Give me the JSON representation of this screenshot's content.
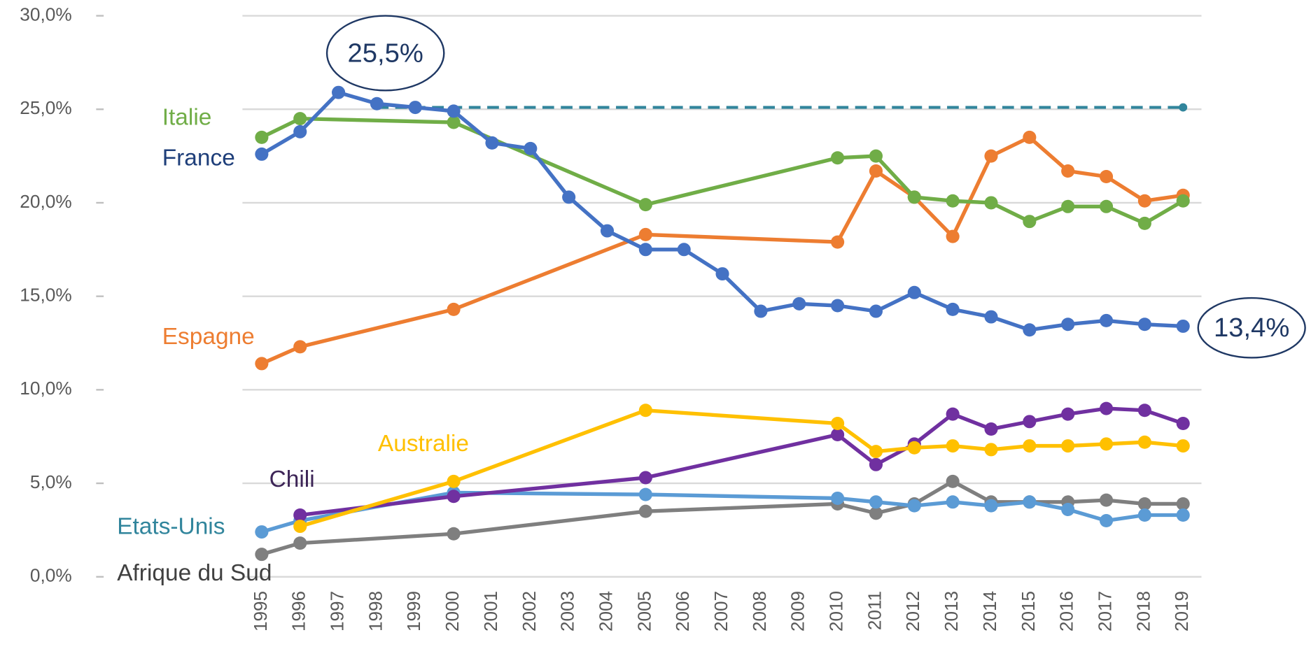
{
  "chart_data": {
    "type": "line",
    "xlim": [
      1995,
      2019
    ],
    "xticks": [
      1995,
      1996,
      1997,
      1998,
      1999,
      2000,
      2001,
      2002,
      2003,
      2004,
      2005,
      2006,
      2007,
      2008,
      2009,
      2010,
      2011,
      2012,
      2013,
      2014,
      2015,
      2016,
      2017,
      2018,
      2019
    ],
    "ylim": [
      0,
      30
    ],
    "yticks": [
      {
        "value": 0,
        "label": "0,0%"
      },
      {
        "value": 5,
        "label": "5,0%"
      },
      {
        "value": 10,
        "label": "10,0%"
      },
      {
        "value": 15,
        "label": "15,0%"
      },
      {
        "value": 20,
        "label": "20,0%"
      },
      {
        "value": 25,
        "label": "25,0%"
      },
      {
        "value": 30,
        "label": "30,0%"
      }
    ],
    "grid": true,
    "series": [
      {
        "name": "France",
        "color": "#4472c4",
        "x": [
          1995,
          1996,
          1997,
          1998,
          1999,
          2000,
          2001,
          2002,
          2003,
          2004,
          2005,
          2006,
          2007,
          2008,
          2009,
          2010,
          2011,
          2012,
          2013,
          2014,
          2015,
          2016,
          2017,
          2018,
          2019
        ],
        "values": [
          22.6,
          23.8,
          25.9,
          25.3,
          25.1,
          24.9,
          23.2,
          22.9,
          20.3,
          18.5,
          17.5,
          17.5,
          16.2,
          14.2,
          14.6,
          14.5,
          14.2,
          15.2,
          14.3,
          13.9,
          13.2,
          13.5,
          13.7,
          13.5,
          13.4
        ]
      },
      {
        "name": "Italie",
        "color": "#70ad47",
        "x": [
          1995,
          1996,
          2000,
          2005,
          2010,
          2011,
          2012,
          2013,
          2014,
          2015,
          2016,
          2017,
          2018,
          2019
        ],
        "values": [
          23.5,
          24.5,
          24.3,
          19.9,
          22.4,
          22.5,
          20.3,
          20.1,
          20.0,
          19.0,
          19.8,
          19.8,
          18.9,
          20.1
        ]
      },
      {
        "name": "Espagne",
        "color": "#ed7d31",
        "x": [
          1995,
          1996,
          2000,
          2005,
          2010,
          2011,
          2012,
          2013,
          2014,
          2015,
          2016,
          2017,
          2018,
          2019
        ],
        "values": [
          11.4,
          12.3,
          14.3,
          18.3,
          17.9,
          21.7,
          20.3,
          18.2,
          22.5,
          23.5,
          21.7,
          21.4,
          20.1,
          20.4
        ]
      },
      {
        "name": "Australie",
        "color": "#ffc000",
        "x": [
          1996,
          2000,
          2005,
          2010,
          2011,
          2012,
          2013,
          2014,
          2015,
          2016,
          2017,
          2018,
          2019
        ],
        "values": [
          2.7,
          5.1,
          8.9,
          8.2,
          6.7,
          6.9,
          7.0,
          6.8,
          7.0,
          7.0,
          7.1,
          7.2,
          7.0
        ]
      },
      {
        "name": "Chili",
        "color": "#7030a0",
        "x": [
          1996,
          2000,
          2005,
          2010,
          2011,
          2012,
          2013,
          2014,
          2015,
          2016,
          2017,
          2018,
          2019
        ],
        "values": [
          3.3,
          4.3,
          5.3,
          7.6,
          6.0,
          7.1,
          8.7,
          7.9,
          8.3,
          8.7,
          9.0,
          8.9,
          8.2
        ]
      },
      {
        "name": "Etats-Unis",
        "color": "#5b9bd5",
        "x": [
          1995,
          1996,
          2000,
          2005,
          2010,
          2011,
          2012,
          2013,
          2014,
          2015,
          2016,
          2017,
          2018,
          2019
        ],
        "values": [
          2.4,
          3.0,
          4.5,
          4.4,
          4.2,
          4.0,
          3.8,
          4.0,
          3.8,
          4.0,
          3.6,
          3.0,
          3.3,
          3.3
        ]
      },
      {
        "name": "Afrique du Sud",
        "color": "#7f7f7f",
        "x": [
          1995,
          1996,
          2000,
          2005,
          2010,
          2011,
          2012,
          2013,
          2014,
          2015,
          2016,
          2017,
          2018,
          2019
        ],
        "values": [
          1.2,
          1.8,
          2.3,
          3.5,
          3.9,
          3.4,
          3.9,
          5.1,
          4.0,
          4.0,
          4.0,
          4.1,
          3.9,
          3.9
        ]
      }
    ],
    "reference_line": {
      "value": 25.1,
      "x": [
        1998,
        2019
      ],
      "color": "#31859c"
    },
    "annotations": [
      {
        "text": "25,5%"
      },
      {
        "text": "13,4%"
      }
    ]
  }
}
